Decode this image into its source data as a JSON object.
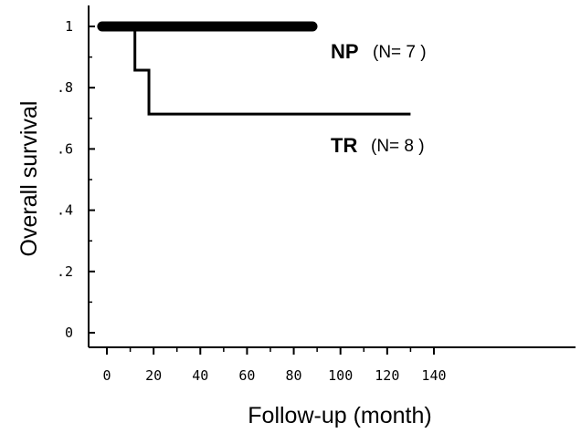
{
  "chart_data": {
    "type": "line",
    "title": "",
    "xlabel": "Follow-up (month)",
    "ylabel": "Overall survival",
    "xlim": [
      -3,
      144
    ],
    "ylim": [
      -0.05,
      1.05
    ],
    "x_ticks": [
      0,
      20,
      40,
      60,
      80,
      100,
      120,
      140
    ],
    "x_tick_labels": [
      "0",
      "20",
      "40",
      "60",
      "80",
      "100",
      "120",
      "140"
    ],
    "y_ticks": [
      0,
      0.2,
      0.4,
      0.6,
      0.8,
      1
    ],
    "y_tick_labels": [
      "0",
      ".2",
      ".4",
      ".6",
      ".8",
      "1"
    ],
    "grid": false,
    "series": [
      {
        "name": "NP",
        "n_label": "(N= 7 )",
        "step": true,
        "color": "#000000",
        "x": [
          -2,
          88
        ],
        "y": [
          1.0,
          1.0
        ]
      },
      {
        "name": "TR",
        "n_label": "(N= 8 )",
        "step": true,
        "color": "#000000",
        "x": [
          -2,
          12,
          18,
          130
        ],
        "y": [
          1.0,
          0.857,
          0.714,
          0.714
        ]
      }
    ]
  }
}
